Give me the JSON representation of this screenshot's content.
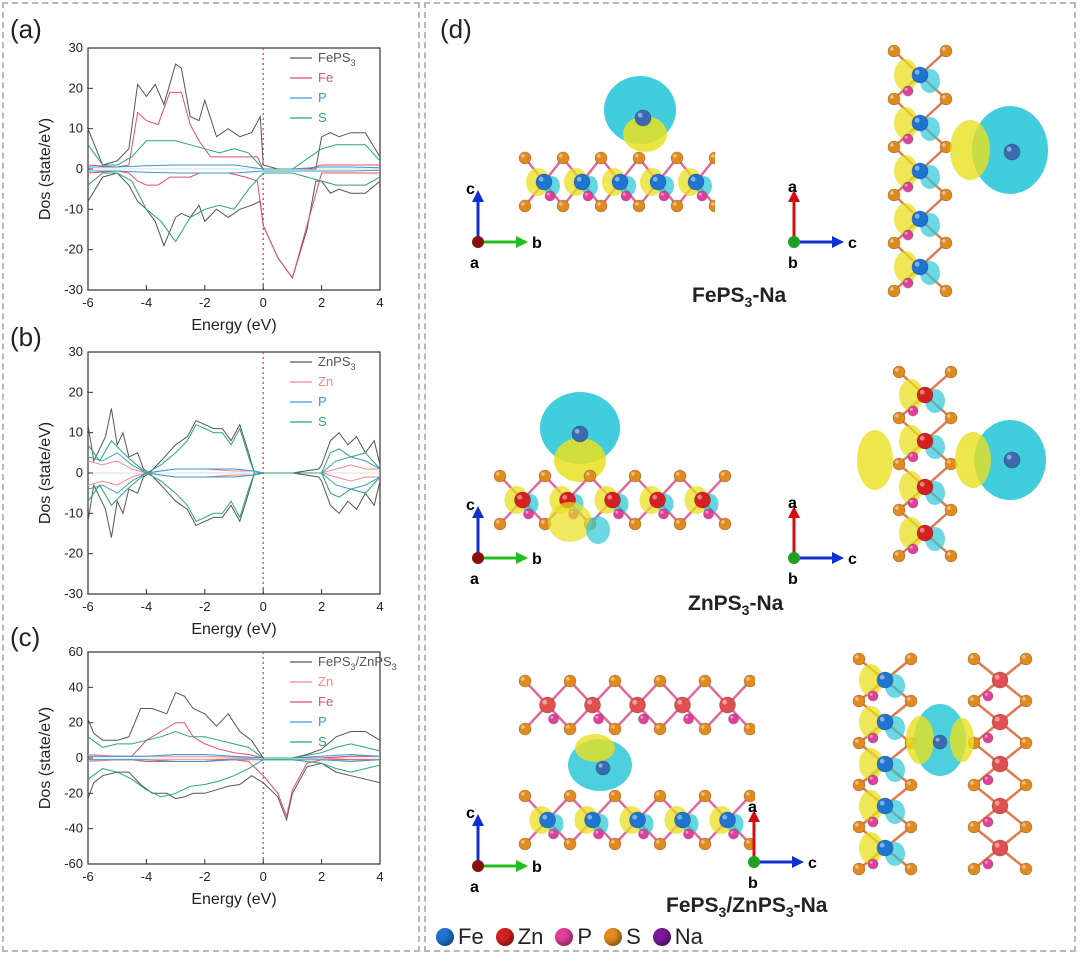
{
  "panels": {
    "a": "(a)",
    "b": "(b)",
    "c": "(c)",
    "d": "(d)"
  },
  "colors": {
    "total": "#555555",
    "fe": "#e0506a",
    "zn": "#f08a8a",
    "p": "#3a9ad0",
    "s": "#2aa57a",
    "fermi": "#e04040",
    "iso_cyan": "#2ec8d8",
    "iso_yellow": "#e8e020",
    "atom_fe": "#1f74d0",
    "atom_zn": "#d42020",
    "atom_p": "#e0409a",
    "atom_s": "#e08a20",
    "atom_na": "#7a1a9a"
  },
  "structures": {
    "fe_label_pre": "FePS",
    "fe_label_sub": "3",
    "fe_label_post": "-Na",
    "zn_label_pre": "ZnPS",
    "zn_label_sub": "3",
    "zn_label_post": "-Na",
    "het_label_a": "FePS",
    "het_label_sub1": "3",
    "het_label_b": "/ZnPS",
    "het_label_sub2": "3",
    "het_label_c": "-Na",
    "axis_a": "a",
    "axis_b": "b",
    "axis_c": "c"
  },
  "legend": {
    "fe": "Fe",
    "zn": "Zn",
    "p": "P",
    "s": "S",
    "na": "Na"
  },
  "chart_data": [
    {
      "id": "a",
      "type": "line",
      "xlabel": "Energy (eV)",
      "ylabel": "Dos (state/eV)",
      "xlim": [
        -6,
        4
      ],
      "ylim": [
        -30,
        30
      ],
      "xticks": [
        "-6",
        "-4",
        "-2",
        "0",
        "2",
        "4"
      ],
      "yticks": [
        "30",
        "20",
        "10",
        "0",
        "-10",
        "-20",
        "-30"
      ],
      "fermi_level": 0,
      "series": [
        {
          "name": "FePS",
          "sub": "3",
          "color": "total",
          "x": [
            -6,
            -5.5,
            -5,
            -4.6,
            -4.3,
            -4,
            -3.7,
            -3.4,
            -3,
            -2.8,
            -2.5,
            -2.2,
            -2,
            -1.6,
            -1.2,
            -0.8,
            -0.4,
            -0.1,
            0,
            0.5,
            1,
            1.5,
            1.8,
            2,
            2.3,
            2.6,
            3,
            3.5,
            4
          ],
          "up": [
            10,
            1,
            2,
            5,
            21,
            18,
            21,
            16,
            26,
            25,
            13,
            12,
            17,
            8,
            10,
            8,
            9,
            13,
            1,
            0,
            0,
            0,
            0,
            8,
            9,
            8,
            9,
            9,
            3
          ],
          "down": [
            -8,
            -2,
            -1,
            -4,
            -8,
            -10,
            -13,
            -19,
            -12,
            -11,
            -12,
            -9,
            -13,
            -10,
            -12,
            -10,
            -9,
            -8,
            -14,
            -22,
            -27,
            -15,
            -3,
            -3,
            -6,
            -5,
            -6,
            -6,
            -3
          ]
        },
        {
          "name": "Fe",
          "color": "fe",
          "x": [
            -6,
            -5,
            -4.6,
            -4.3,
            -4,
            -3.6,
            -3.2,
            -2.8,
            -2.5,
            -2.2,
            -1.8,
            -1.2,
            -0.6,
            -0.2,
            0,
            0.5,
            1,
            1.5,
            2,
            3,
            4
          ],
          "up": [
            1,
            0.5,
            1,
            14,
            12,
            11,
            19,
            19,
            11,
            7,
            3,
            3,
            3,
            3,
            0,
            0,
            0,
            0,
            1,
            1,
            1
          ],
          "down": [
            -1,
            -0.5,
            -1,
            -3,
            -4,
            -4,
            -2,
            -2,
            -2,
            -1,
            -1,
            -1,
            -2,
            -3,
            -14,
            -22,
            -27,
            -14,
            -1,
            -1,
            -1
          ]
        },
        {
          "name": "P",
          "color": "p",
          "x": [
            -6,
            -5,
            -4,
            -3,
            -2,
            -1,
            0,
            1,
            2,
            3,
            4
          ],
          "up": [
            0.5,
            0.5,
            0.8,
            1,
            1,
            1,
            0,
            0,
            0.5,
            0.5,
            0.3
          ],
          "down": [
            -0.5,
            -0.5,
            -0.8,
            -1,
            -1,
            -1,
            -0.5,
            -0.5,
            -0.5,
            -0.5,
            -0.3
          ]
        },
        {
          "name": "S",
          "color": "s",
          "x": [
            -6,
            -5.5,
            -5,
            -4.5,
            -4,
            -3.5,
            -3,
            -2.5,
            -2,
            -1.5,
            -1,
            -0.5,
            0,
            1,
            2,
            2.5,
            3,
            3.5,
            4
          ],
          "up": [
            6,
            1,
            1,
            3,
            7,
            7,
            7,
            6,
            5,
            4,
            5,
            4,
            0,
            0,
            5,
            6,
            6,
            6,
            2
          ],
          "down": [
            -4,
            -1,
            -1,
            -3,
            -10,
            -13,
            -18,
            -12,
            -10,
            -9,
            -10,
            -5,
            -1,
            -1,
            -3,
            -4,
            -4,
            -4,
            -2
          ]
        }
      ]
    },
    {
      "id": "b",
      "type": "line",
      "xlabel": "Energy (eV)",
      "ylabel": "Dos (state/eV)",
      "xlim": [
        -6,
        4
      ],
      "ylim": [
        -30,
        30
      ],
      "xticks": [
        "-6",
        "-4",
        "-2",
        "0",
        "2",
        "4"
      ],
      "yticks": [
        "30",
        "20",
        "10",
        "0",
        "-10",
        "-20",
        "-30"
      ],
      "fermi_level": 0,
      "series": [
        {
          "name": "ZnPS",
          "sub": "3",
          "color": "total",
          "x": [
            -6,
            -5.8,
            -5.6,
            -5.4,
            -5.2,
            -5,
            -4.8,
            -4.6,
            -4.3,
            -4.1,
            -3.9,
            -3.5,
            -3,
            -2.6,
            -2.3,
            -2,
            -1.7,
            -1.4,
            -1.1,
            -0.8,
            -0.5,
            -0.3,
            0,
            1,
            1.9,
            2,
            2.3,
            2.6,
            2.9,
            3.2,
            3.5,
            3.8,
            4
          ],
          "up": [
            12,
            3,
            6,
            9,
            16,
            7,
            10,
            4,
            5,
            1,
            0,
            3,
            7,
            9,
            13,
            12,
            11,
            11,
            8,
            12,
            5,
            0,
            0,
            0,
            1,
            2,
            8,
            10,
            7,
            9,
            5,
            8,
            2
          ],
          "down": [
            -12,
            -3,
            -6,
            -9,
            -16,
            -7,
            -10,
            -4,
            -5,
            -1,
            0,
            -3,
            -7,
            -9,
            -13,
            -12,
            -11,
            -11,
            -8,
            -12,
            -5,
            0,
            0,
            0,
            -1,
            -2,
            -8,
            -10,
            -7,
            -9,
            -5,
            -8,
            -2
          ]
        },
        {
          "name": "Zn",
          "color": "zn",
          "x": [
            -6,
            -5.5,
            -5,
            -4.5,
            -4,
            -3,
            -2,
            -1,
            -0.3,
            0,
            2,
            2.5,
            3,
            3.5,
            4
          ],
          "up": [
            3,
            2,
            3,
            1,
            0,
            1,
            1,
            0.5,
            0.5,
            0,
            0,
            1,
            2,
            1,
            1
          ],
          "down": [
            -3,
            -2,
            -3,
            -1,
            0,
            -1,
            -1,
            -0.5,
            -0.5,
            0,
            0,
            -1,
            -2,
            -1,
            -1
          ]
        },
        {
          "name": "P",
          "color": "p",
          "x": [
            -6,
            -5.5,
            -5,
            -4.5,
            -4,
            -3,
            -2,
            -1,
            -0.3,
            0,
            2,
            2.5,
            3,
            3.5,
            4
          ],
          "up": [
            4,
            3,
            5,
            2,
            0,
            1,
            1,
            1,
            0.5,
            0,
            0,
            3,
            4,
            3,
            1
          ],
          "down": [
            -4,
            -3,
            -5,
            -2,
            0,
            -1,
            -1,
            -1,
            -0.5,
            0,
            0,
            -3,
            -4,
            -3,
            -1
          ]
        },
        {
          "name": "S",
          "color": "s",
          "x": [
            -6,
            -5.6,
            -5.2,
            -4.8,
            -4.5,
            -4,
            -3.5,
            -3,
            -2.6,
            -2.3,
            -2,
            -1.7,
            -1.4,
            -1.1,
            -0.8,
            -0.5,
            -0.3,
            0,
            2,
            2.3,
            2.6,
            3,
            3.5,
            4
          ],
          "up": [
            7,
            3,
            8,
            5,
            3,
            0,
            2,
            5,
            8,
            12,
            11,
            10,
            10,
            7,
            11,
            4,
            0,
            0,
            0,
            5,
            6,
            4,
            5,
            1
          ],
          "down": [
            -7,
            -3,
            -8,
            -5,
            -3,
            0,
            -2,
            -5,
            -8,
            -12,
            -11,
            -10,
            -10,
            -7,
            -11,
            -4,
            0,
            0,
            0,
            -5,
            -6,
            -4,
            -5,
            -1
          ]
        }
      ]
    },
    {
      "id": "c",
      "type": "line",
      "xlabel": "Energy (eV)",
      "ylabel": "Dos (state/eV)",
      "xlim": [
        -6,
        4
      ],
      "ylim": [
        -60,
        60
      ],
      "xticks": [
        "-6",
        "-4",
        "-2",
        "0",
        "2",
        "4"
      ],
      "yticks": [
        "60",
        "40",
        "20",
        "0",
        "-20",
        "-40",
        "-60"
      ],
      "fermi_level": 0,
      "series": [
        {
          "name": "FePS",
          "sub": "3",
          "name2": "/ZnPS",
          "sub2": "3",
          "color": "total",
          "x": [
            -6,
            -5.8,
            -5.5,
            -5,
            -4.6,
            -4.2,
            -3.8,
            -3.3,
            -3,
            -2.7,
            -2.4,
            -2,
            -1.6,
            -1.2,
            -0.8,
            -0.4,
            0,
            0.5,
            0.8,
            1,
            1.5,
            2,
            2.5,
            3,
            3.5,
            4
          ],
          "up": [
            22,
            14,
            10,
            10,
            12,
            28,
            28,
            25,
            37,
            35,
            28,
            25,
            18,
            25,
            15,
            10,
            0,
            0,
            0,
            0,
            2,
            5,
            12,
            15,
            15,
            10
          ],
          "down": [
            -23,
            -14,
            -10,
            -8,
            -8,
            -15,
            -20,
            -20,
            -23,
            -22,
            -20,
            -20,
            -18,
            -16,
            -15,
            -10,
            -14,
            -22,
            -35,
            -20,
            -5,
            -3,
            -8,
            -10,
            -12,
            -14
          ]
        },
        {
          "name": "Zn",
          "color": "zn",
          "x": [
            -6,
            -5,
            -4,
            -3,
            -2,
            -1,
            0,
            2,
            3,
            4
          ],
          "up": [
            2,
            1,
            1,
            1,
            1,
            0.5,
            0,
            0,
            1,
            1
          ],
          "down": [
            -2,
            -1,
            -1,
            -1,
            -1,
            -0.5,
            0,
            0,
            -1,
            -1
          ]
        },
        {
          "name": "Fe",
          "color": "fe",
          "x": [
            -6,
            -5,
            -4.5,
            -4,
            -3.5,
            -3,
            -2.7,
            -2.4,
            -2,
            -1.5,
            -1,
            -0.5,
            0,
            0.5,
            0.8,
            1,
            1.5,
            2,
            3,
            4
          ],
          "up": [
            1,
            1,
            1,
            10,
            15,
            20,
            20,
            12,
            8,
            5,
            3,
            2,
            0,
            0,
            0,
            0,
            0,
            0,
            1,
            1
          ],
          "down": [
            -1,
            -1,
            -1,
            -2,
            -2,
            -2,
            -2,
            -2,
            -2,
            -1,
            -1,
            -2,
            -10,
            -20,
            -33,
            -18,
            -3,
            -1,
            -1,
            -1
          ]
        },
        {
          "name": "P",
          "color": "p",
          "x": [
            -6,
            -5,
            -4,
            -3,
            -2,
            -1,
            0,
            1,
            2,
            3,
            4
          ],
          "up": [
            1,
            1,
            1,
            2,
            2,
            1,
            0,
            0,
            1,
            2,
            1
          ],
          "down": [
            -1,
            -1,
            -1,
            -2,
            -2,
            -1,
            -1,
            -1,
            -1,
            -2,
            -1
          ]
        },
        {
          "name": "S",
          "color": "s",
          "x": [
            -6,
            -5.5,
            -5,
            -4.5,
            -4,
            -3.5,
            -3,
            -2.5,
            -2,
            -1.5,
            -1,
            -0.5,
            0,
            1,
            2,
            2.5,
            3,
            3.5,
            4
          ],
          "up": [
            12,
            6,
            8,
            8,
            10,
            12,
            15,
            12,
            12,
            10,
            8,
            6,
            0,
            0,
            3,
            6,
            8,
            6,
            4
          ],
          "down": [
            -12,
            -6,
            -8,
            -12,
            -18,
            -22,
            -20,
            -16,
            -15,
            -13,
            -10,
            -6,
            -1,
            -1,
            -3,
            -6,
            -8,
            -6,
            -4
          ]
        }
      ]
    }
  ]
}
